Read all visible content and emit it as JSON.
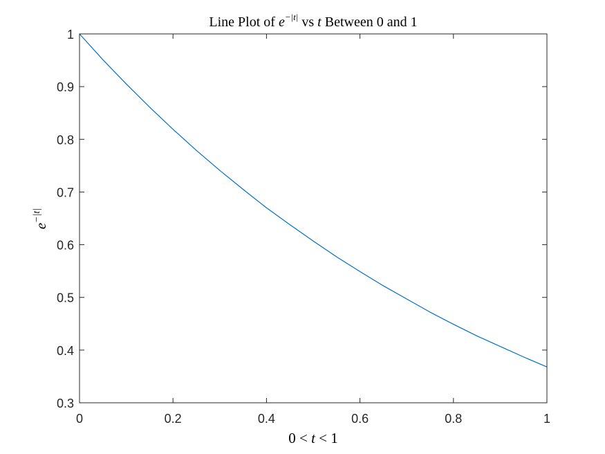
{
  "chart_data": {
    "type": "line",
    "title": {
      "pre": "Line Plot of ",
      "base": "e",
      "sup": "−|t|",
      "mid": " vs ",
      "var": "t",
      "post": " Between 0 and 1"
    },
    "xlabel": {
      "a": "0",
      "lt1": " < ",
      "var": "t",
      "lt2": " < ",
      "b": "1"
    },
    "ylabel": {
      "base": "e",
      "sup": "−|t|"
    },
    "xlim": [
      0,
      1
    ],
    "ylim": [
      0.3,
      1
    ],
    "xticks": [
      0,
      0.2,
      0.4,
      0.6,
      0.8,
      1
    ],
    "xtick_labels": [
      "0",
      "0.2",
      "0.4",
      "0.6",
      "0.8",
      "1"
    ],
    "yticks": [
      0.3,
      0.4,
      0.5,
      0.6,
      0.7,
      0.8,
      0.9,
      1
    ],
    "ytick_labels": [
      "0.3",
      "0.4",
      "0.5",
      "0.6",
      "0.7",
      "0.8",
      "0.9",
      "1"
    ],
    "grid": false,
    "series": [
      {
        "color": "#0072BD",
        "x": [
          0,
          0.05,
          0.1,
          0.15,
          0.2,
          0.25,
          0.3,
          0.35,
          0.4,
          0.45,
          0.5,
          0.55,
          0.6,
          0.65,
          0.7,
          0.75,
          0.8,
          0.85,
          0.9,
          0.95,
          1
        ],
        "y": [
          1,
          0.951,
          0.905,
          0.861,
          0.819,
          0.779,
          0.741,
          0.705,
          0.67,
          0.638,
          0.607,
          0.577,
          0.549,
          0.522,
          0.497,
          0.472,
          0.449,
          0.427,
          0.407,
          0.387,
          0.368
        ]
      }
    ]
  }
}
